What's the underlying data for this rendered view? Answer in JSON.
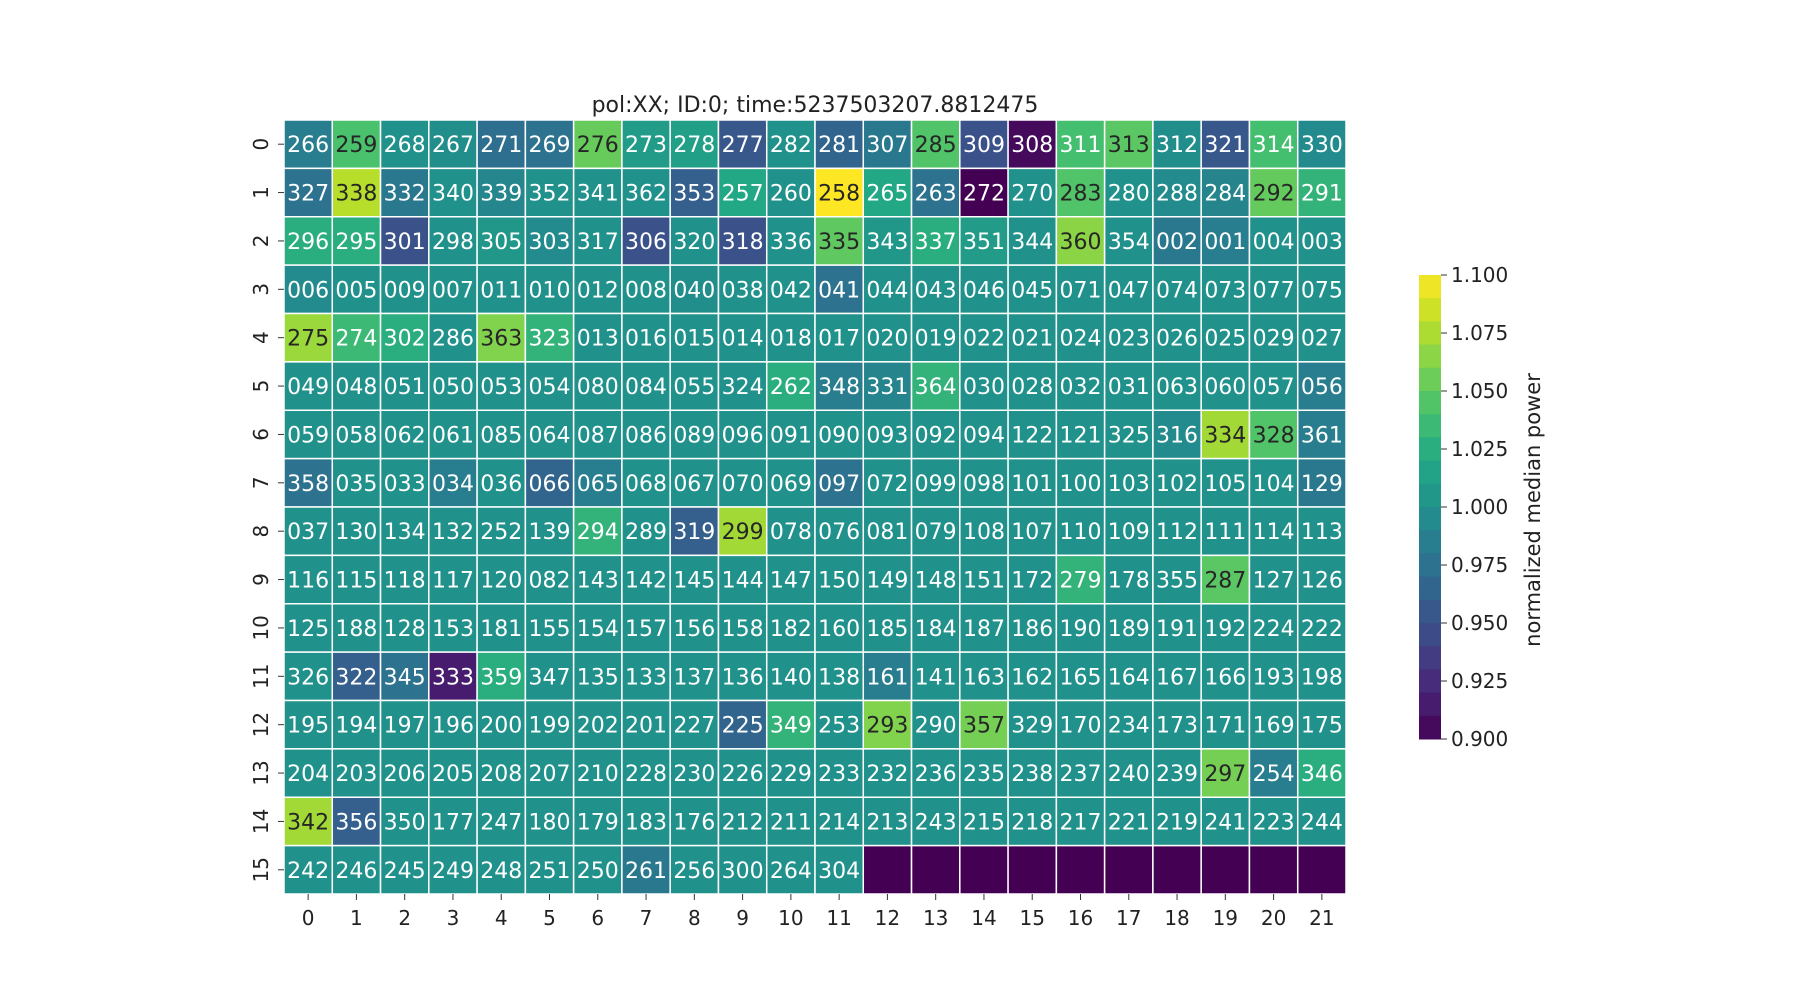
{
  "chart_data": {
    "type": "heatmap",
    "title": "pol:XX; ID:0; time:5237503207.8812475",
    "x_ticks": [
      "0",
      "1",
      "2",
      "3",
      "4",
      "5",
      "6",
      "7",
      "8",
      "9",
      "10",
      "11",
      "12",
      "13",
      "14",
      "15",
      "16",
      "17",
      "18",
      "19",
      "20",
      "21"
    ],
    "y_ticks": [
      "0",
      "1",
      "2",
      "3",
      "4",
      "5",
      "6",
      "7",
      "8",
      "9",
      "10",
      "11",
      "12",
      "13",
      "14",
      "15"
    ],
    "colorbar": {
      "label": "normalized median power",
      "range": [
        0.9,
        1.1
      ],
      "ticks": [
        "1.100",
        "1.075",
        "1.050",
        "1.025",
        "1.000",
        "0.975",
        "0.950",
        "0.925",
        "0.900"
      ],
      "tick_values": [
        1.1,
        1.075,
        1.05,
        1.025,
        1.0,
        0.975,
        0.95,
        0.925,
        0.9
      ],
      "colormap": "viridis"
    },
    "annotations": [
      [
        "266",
        "259",
        "268",
        "267",
        "271",
        "269",
        "276",
        "273",
        "278",
        "277",
        "282",
        "281",
        "307",
        "285",
        "309",
        "308",
        "311",
        "313",
        "312",
        "321",
        "314",
        "330"
      ],
      [
        "327",
        "338",
        "332",
        "340",
        "339",
        "352",
        "341",
        "362",
        "353",
        "257",
        "260",
        "258",
        "265",
        "263",
        "272",
        "270",
        "283",
        "280",
        "288",
        "284",
        "292",
        "291"
      ],
      [
        "296",
        "295",
        "301",
        "298",
        "305",
        "303",
        "317",
        "306",
        "320",
        "318",
        "336",
        "335",
        "343",
        "337",
        "351",
        "344",
        "360",
        "354",
        "002",
        "001",
        "004",
        "003"
      ],
      [
        "006",
        "005",
        "009",
        "007",
        "011",
        "010",
        "012",
        "008",
        "040",
        "038",
        "042",
        "041",
        "044",
        "043",
        "046",
        "045",
        "071",
        "047",
        "074",
        "073",
        "077",
        "075"
      ],
      [
        "275",
        "274",
        "302",
        "286",
        "363",
        "323",
        "013",
        "016",
        "015",
        "014",
        "018",
        "017",
        "020",
        "019",
        "022",
        "021",
        "024",
        "023",
        "026",
        "025",
        "029",
        "027"
      ],
      [
        "049",
        "048",
        "051",
        "050",
        "053",
        "054",
        "080",
        "084",
        "055",
        "324",
        "262",
        "348",
        "331",
        "364",
        "030",
        "028",
        "032",
        "031",
        "063",
        "060",
        "057",
        "056"
      ],
      [
        "059",
        "058",
        "062",
        "061",
        "085",
        "064",
        "087",
        "086",
        "089",
        "096",
        "091",
        "090",
        "093",
        "092",
        "094",
        "122",
        "121",
        "325",
        "316",
        "334",
        "328",
        "361"
      ],
      [
        "358",
        "035",
        "033",
        "034",
        "036",
        "066",
        "065",
        "068",
        "067",
        "070",
        "069",
        "097",
        "072",
        "099",
        "098",
        "101",
        "100",
        "103",
        "102",
        "105",
        "104",
        "129"
      ],
      [
        "037",
        "130",
        "134",
        "132",
        "252",
        "139",
        "294",
        "289",
        "319",
        "299",
        "078",
        "076",
        "081",
        "079",
        "108",
        "107",
        "110",
        "109",
        "112",
        "111",
        "114",
        "113"
      ],
      [
        "116",
        "115",
        "118",
        "117",
        "120",
        "082",
        "143",
        "142",
        "145",
        "144",
        "147",
        "150",
        "149",
        "148",
        "151",
        "172",
        "279",
        "178",
        "355",
        "287",
        "127",
        "126"
      ],
      [
        "125",
        "188",
        "128",
        "153",
        "181",
        "155",
        "154",
        "157",
        "156",
        "158",
        "182",
        "160",
        "185",
        "184",
        "187",
        "186",
        "190",
        "189",
        "191",
        "192",
        "224",
        "222"
      ],
      [
        "326",
        "322",
        "345",
        "333",
        "359",
        "347",
        "135",
        "133",
        "137",
        "136",
        "140",
        "138",
        "161",
        "141",
        "163",
        "162",
        "165",
        "164",
        "167",
        "166",
        "193",
        "198"
      ],
      [
        "195",
        "194",
        "197",
        "196",
        "200",
        "199",
        "202",
        "201",
        "227",
        "225",
        "349",
        "253",
        "293",
        "290",
        "357",
        "329",
        "170",
        "234",
        "173",
        "171",
        "169",
        "175"
      ],
      [
        "204",
        "203",
        "206",
        "205",
        "208",
        "207",
        "210",
        "228",
        "230",
        "226",
        "229",
        "233",
        "232",
        "236",
        "235",
        "238",
        "237",
        "240",
        "239",
        "297",
        "254",
        "346"
      ],
      [
        "342",
        "356",
        "350",
        "177",
        "247",
        "180",
        "179",
        "183",
        "176",
        "212",
        "211",
        "214",
        "213",
        "243",
        "215",
        "218",
        "217",
        "221",
        "219",
        "241",
        "223",
        "244"
      ],
      [
        "242",
        "246",
        "245",
        "249",
        "248",
        "251",
        "250",
        "261",
        "256",
        "300",
        "264",
        "304",
        "",
        "",
        "",
        "",
        "",
        "",
        "",
        "",
        "",
        ""
      ]
    ],
    "values": [
      [
        0.985,
        1.042,
        1.0,
        0.998,
        0.972,
        0.975,
        1.053,
        1.01,
        1.012,
        0.955,
        1.0,
        0.965,
        0.98,
        1.045,
        0.95,
        0.905,
        1.04,
        1.048,
        0.998,
        0.955,
        1.04,
        0.995
      ],
      [
        0.975,
        1.078,
        0.98,
        1.0,
        0.992,
        1.0,
        1.0,
        1.0,
        0.96,
        1.02,
        1.0,
        1.1,
        1.02,
        0.975,
        0.9,
        1.0,
        1.045,
        1.0,
        0.995,
        0.99,
        1.052,
        1.03
      ],
      [
        1.025,
        1.025,
        0.95,
        1.0,
        1.005,
        0.995,
        1.0,
        0.95,
        1.0,
        0.95,
        1.0,
        1.05,
        1.005,
        1.025,
        1.01,
        1.0,
        1.065,
        1.0,
        0.98,
        0.985,
        1.0,
        1.0
      ],
      [
        0.995,
        1.0,
        1.0,
        1.0,
        1.0,
        1.0,
        1.0,
        1.0,
        0.998,
        1.0,
        1.0,
        0.975,
        1.0,
        1.0,
        1.0,
        1.0,
        1.0,
        1.0,
        1.0,
        1.0,
        1.0,
        1.0
      ],
      [
        1.07,
        1.035,
        1.025,
        1.0,
        1.062,
        1.03,
        1.0,
        1.0,
        1.0,
        1.0,
        1.0,
        1.0,
        1.0,
        1.0,
        1.0,
        1.0,
        1.0,
        1.0,
        1.0,
        1.0,
        1.0,
        1.0
      ],
      [
        1.0,
        1.0,
        1.0,
        1.0,
        1.0,
        1.0,
        1.0,
        1.0,
        1.0,
        1.0,
        1.025,
        0.985,
        0.99,
        1.03,
        1.0,
        1.0,
        1.0,
        1.0,
        1.0,
        1.0,
        1.0,
        0.985
      ],
      [
        1.0,
        1.0,
        1.0,
        1.0,
        1.0,
        1.0,
        1.0,
        1.0,
        1.0,
        1.0,
        1.0,
        1.0,
        1.0,
        1.0,
        1.0,
        1.0,
        1.0,
        1.0,
        0.995,
        1.072,
        1.045,
        0.985
      ],
      [
        0.975,
        1.0,
        1.0,
        0.985,
        1.0,
        0.965,
        0.985,
        1.0,
        1.0,
        1.0,
        1.0,
        0.975,
        1.0,
        1.0,
        1.0,
        1.0,
        1.0,
        1.0,
        1.0,
        1.0,
        1.0,
        0.98
      ],
      [
        1.0,
        1.0,
        1.0,
        1.0,
        1.0,
        1.0,
        1.03,
        1.0,
        0.96,
        1.072,
        1.0,
        1.0,
        1.0,
        1.0,
        1.0,
        1.0,
        1.0,
        1.0,
        1.0,
        1.0,
        1.0,
        1.0
      ],
      [
        1.0,
        1.0,
        1.0,
        1.0,
        1.0,
        1.0,
        1.0,
        1.0,
        1.0,
        1.0,
        1.0,
        1.0,
        1.0,
        1.0,
        1.0,
        1.0,
        1.03,
        1.0,
        1.0,
        1.048,
        1.0,
        1.0
      ],
      [
        1.0,
        1.0,
        1.0,
        1.0,
        1.0,
        1.0,
        1.0,
        1.0,
        1.0,
        1.0,
        1.0,
        1.0,
        1.0,
        1.0,
        1.0,
        1.0,
        1.0,
        1.0,
        1.0,
        1.0,
        1.0,
        1.0
      ],
      [
        1.0,
        0.96,
        0.975,
        0.915,
        1.025,
        1.0,
        1.0,
        1.0,
        1.0,
        1.0,
        1.0,
        1.0,
        0.985,
        1.0,
        1.0,
        1.0,
        1.0,
        1.0,
        1.0,
        1.0,
        1.0,
        1.0
      ],
      [
        1.0,
        1.0,
        1.0,
        1.0,
        1.0,
        1.0,
        1.0,
        1.0,
        1.0,
        0.965,
        1.03,
        1.0,
        1.062,
        1.0,
        1.058,
        1.0,
        1.0,
        1.0,
        1.0,
        1.0,
        1.0,
        1.0
      ],
      [
        1.0,
        1.0,
        1.0,
        1.0,
        1.0,
        1.0,
        1.0,
        1.0,
        1.0,
        1.0,
        1.0,
        1.0,
        1.0,
        1.0,
        1.0,
        1.0,
        1.0,
        1.0,
        1.0,
        1.058,
        0.985,
        1.025
      ],
      [
        1.072,
        0.96,
        1.0,
        1.0,
        1.0,
        1.0,
        1.0,
        1.0,
        1.0,
        1.0,
        1.0,
        1.0,
        1.0,
        1.0,
        1.0,
        1.0,
        1.0,
        1.0,
        1.0,
        1.0,
        1.0,
        1.0
      ],
      [
        1.0,
        1.0,
        1.0,
        1.0,
        1.0,
        1.0,
        1.0,
        0.98,
        1.0,
        1.0,
        1.0,
        1.0,
        0.9,
        0.9,
        0.9,
        0.9,
        0.9,
        0.9,
        0.9,
        0.9,
        0.9,
        0.9
      ]
    ]
  }
}
